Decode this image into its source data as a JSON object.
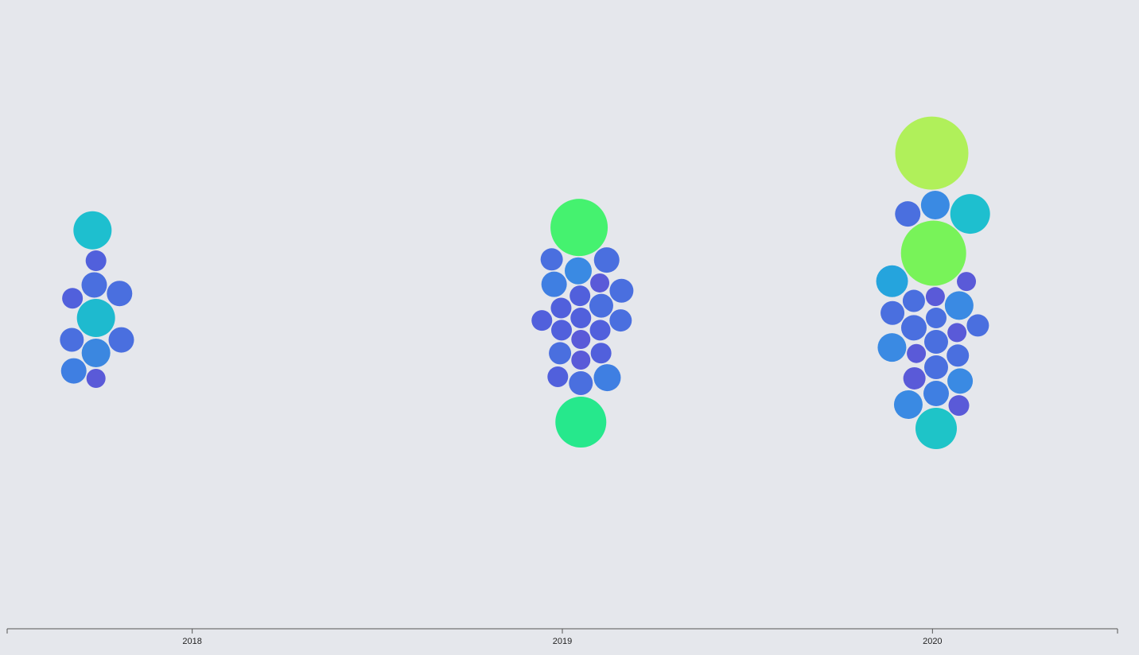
{
  "chart_data": {
    "type": "bubble",
    "xlim": [
      2017.5,
      2020.5
    ],
    "xticks": [
      2018,
      2019,
      2020
    ],
    "x": [
      2017.74,
      2017.74,
      2017.74,
      2017.74,
      2017.74,
      2017.74,
      2017.74,
      2017.74,
      2017.74,
      2017.74,
      2017.74,
      2019.05,
      2019.05,
      2019.05,
      2019.05,
      2019.05,
      2019.05,
      2019.05,
      2019.05,
      2019.05,
      2019.05,
      2019.05,
      2019.05,
      2019.05,
      2019.05,
      2019.05,
      2019.05,
      2019.05,
      2019.05,
      2019.05,
      2019.05,
      2019.05,
      2019.05,
      2019.05,
      2020.01,
      2020.01,
      2020.01,
      2020.01,
      2020.01,
      2020.01,
      2020.01,
      2020.01,
      2020.01,
      2020.01,
      2020.01,
      2020.01,
      2020.01,
      2020.01,
      2020.01,
      2020.01,
      2020.01,
      2020.01,
      2020.01,
      2020.01,
      2020.01,
      2020.01,
      2020.01,
      2020.01,
      2020.01,
      2020.01
    ],
    "sizes": [
      24,
      18,
      16,
      13,
      12,
      16,
      15,
      24,
      16,
      13,
      16,
      13,
      12,
      13,
      12,
      17,
      15,
      13,
      13,
      13,
      15,
      12,
      36,
      14,
      13,
      16,
      32,
      16,
      17,
      13,
      14,
      13,
      14,
      15,
      13,
      15,
      12,
      41,
      15,
      18,
      16,
      14,
      12,
      12,
      14,
      16,
      14,
      16,
      12,
      26,
      18,
      18,
      25,
      46,
      20,
      13,
      18,
      14,
      15,
      16
    ],
    "colors": [
      "#1ebacf",
      "#3b87e0",
      "#4a6fdf",
      "#5160dc",
      "#5a5ad8",
      "#4a6fdf",
      "#4a6fdf",
      "#1ebfcf",
      "#4a6fdf",
      "#5160dc",
      "#3f7fe2",
      "#5160dc",
      "#5a5ad8",
      "#5160dc",
      "#5a5ad8",
      "#3a8ae3",
      "#4a6fdf",
      "#5160dc",
      "#5160dc",
      "#5160dc",
      "#4a6fdf",
      "#5a5ad8",
      "#45f26f",
      "#4a6fdf",
      "#5160dc",
      "#3f7fe2",
      "#26e88c",
      "#4a6fdf",
      "#3f7fe2",
      "#5160dc",
      "#4a6fdf",
      "#5160dc",
      "#4a6fdf",
      "#4a6fdf",
      "#4a6fdf",
      "#4a6fdf",
      "#5a5ad8",
      "#78f359",
      "#4a6fdf",
      "#3a8ae3",
      "#4a6fdf",
      "#4a6fdf",
      "#5a5ad8",
      "#5a5ad8",
      "#4a6fdf",
      "#3f7fe2",
      "#5a5ad8",
      "#3a8ae3",
      "#5a5ad8",
      "#1ec4c8",
      "#3a8ae3",
      "#3a8ae3",
      "#1ebfcf",
      "#b0f05a",
      "#25a4dd",
      "#5a5ad8",
      "#3a8ae3",
      "#4a6fdf",
      "#4a6fdf",
      "#4a6fdf"
    ]
  }
}
